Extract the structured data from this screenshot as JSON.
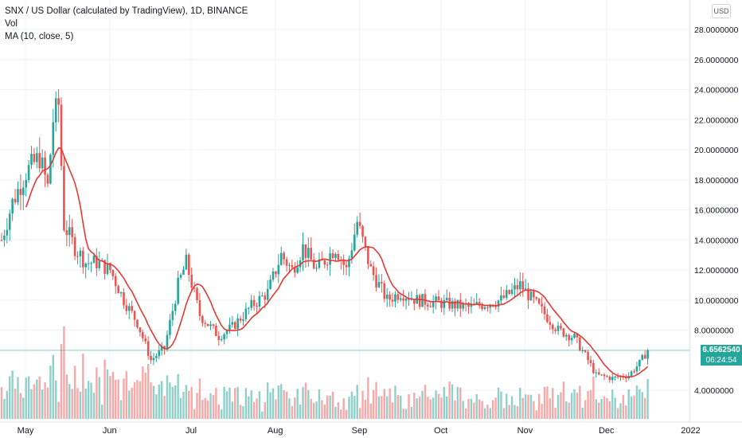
{
  "legend": {
    "title": "SNX / US Dollar (calculated by TradingView), 1D, BINANCE",
    "vol": "Vol",
    "ma": "MA (10, close, 5)"
  },
  "currency": "USD",
  "price_axis": {
    "ticks": [
      "28.0000000",
      "26.0000000",
      "24.0000000",
      "22.0000000",
      "20.0000000",
      "18.0000000",
      "16.0000000",
      "14.0000000",
      "12.0000000",
      "10.0000000",
      "8.0000000",
      "4.0000000"
    ]
  },
  "last_price": "6.6562540",
  "countdown": "06:24:54",
  "time_axis": {
    "labels": [
      "May",
      "Jun",
      "Jul",
      "Aug",
      "Sep",
      "Oct",
      "Nov",
      "Dec",
      "2022"
    ]
  },
  "colors": {
    "up": "#26a69a",
    "down": "#ef5350",
    "ma": "#e53935",
    "price_line": "#26a69a"
  },
  "chart_data": {
    "type": "candlestick",
    "series_name": "SNX / US Dollar",
    "interval": "1D",
    "exchange": "BINANCE",
    "y_range": [
      2.0,
      29.0
    ],
    "keyframes_close": [
      [
        "May 1",
        14.0
      ],
      [
        "May 5",
        16.5
      ],
      [
        "May 10",
        18.5
      ],
      [
        "May 15",
        19.5
      ],
      [
        "May 18",
        17.5
      ],
      [
        "May 20",
        22.0
      ],
      [
        "May 22",
        23.0
      ],
      [
        "May 24",
        15.0
      ],
      [
        "May 28",
        13.5
      ],
      [
        "Jun 1",
        12.5
      ],
      [
        "Jun 5",
        12.5
      ],
      [
        "Jun 10",
        12.0
      ],
      [
        "Jun 15",
        10.0
      ],
      [
        "Jun 20",
        8.5
      ],
      [
        "Jun 25",
        6.0
      ],
      [
        "Jun 30",
        6.8
      ],
      [
        "Jul 5",
        11.0
      ],
      [
        "Jul 8",
        12.5
      ],
      [
        "Jul 13",
        9.0
      ],
      [
        "Jul 20",
        7.6
      ],
      [
        "Jul 25",
        8.2
      ],
      [
        "Aug 1",
        9.6
      ],
      [
        "Aug 7",
        10.5
      ],
      [
        "Aug 12",
        13.0
      ],
      [
        "Aug 16",
        12.0
      ],
      [
        "Aug 20",
        13.5
      ],
      [
        "Aug 25",
        12.0
      ],
      [
        "Sep 1",
        13.5
      ],
      [
        "Sep 5",
        12.0
      ],
      [
        "Sep 9",
        15.2
      ],
      [
        "Sep 14",
        12.0
      ],
      [
        "Sep 20",
        10.0
      ],
      [
        "Sep 25",
        10.5
      ],
      [
        "Oct 1",
        10.0
      ],
      [
        "Oct 10",
        9.8
      ],
      [
        "Oct 20",
        9.5
      ],
      [
        "Nov 1",
        10.0
      ],
      [
        "Nov 8",
        11.0
      ],
      [
        "Nov 15",
        9.5
      ],
      [
        "Nov 22",
        8.0
      ],
      [
        "Nov 28",
        7.5
      ],
      [
        "Dec 3",
        6.0
      ],
      [
        "Dec 6",
        5.0
      ],
      [
        "Dec 12",
        4.8
      ],
      [
        "Dec 18",
        5.0
      ],
      [
        "Dec 22",
        5.8
      ],
      [
        "Dec 25",
        6.66
      ]
    ],
    "moving_average": {
      "name": "MA",
      "length": 10,
      "source": "close",
      "offset": 5
    },
    "volume": {
      "visible": true
    },
    "last_price": 6.656254
  }
}
